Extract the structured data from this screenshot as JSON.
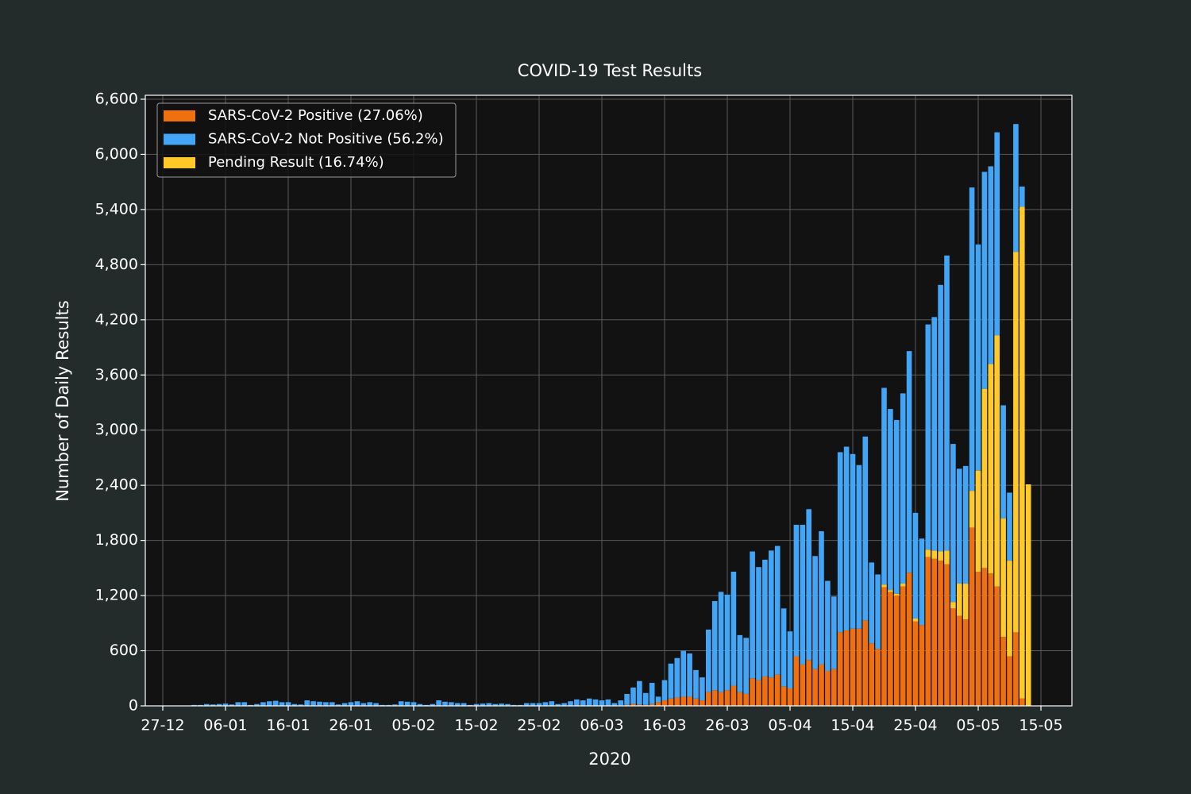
{
  "chart_data": {
    "type": "stacked_bar",
    "title": "COVID-19 Test Results",
    "x_label": "2020",
    "y_label": "Number of Daily Results",
    "categories": [
      "27-12",
      null,
      null,
      null,
      null,
      null,
      null,
      null,
      null,
      null,
      "06-01",
      null,
      null,
      null,
      null,
      null,
      null,
      null,
      null,
      null,
      "16-01",
      null,
      null,
      null,
      null,
      null,
      null,
      null,
      null,
      null,
      "26-01",
      null,
      null,
      null,
      null,
      null,
      null,
      null,
      null,
      null,
      "05-02",
      null,
      null,
      null,
      null,
      null,
      null,
      null,
      null,
      null,
      "15-02",
      null,
      null,
      null,
      null,
      null,
      null,
      null,
      null,
      null,
      "25-02",
      null,
      null,
      null,
      null,
      null,
      null,
      null,
      null,
      null,
      "06-03",
      null,
      null,
      null,
      null,
      null,
      null,
      null,
      null,
      null,
      "16-03",
      null,
      null,
      null,
      null,
      null,
      null,
      null,
      null,
      null,
      "26-03",
      null,
      null,
      null,
      null,
      null,
      null,
      null,
      null,
      null,
      "05-04",
      null,
      null,
      null,
      null,
      null,
      null,
      null,
      null,
      null,
      "15-04",
      null,
      null,
      null,
      null,
      null,
      null,
      null,
      null,
      null,
      "25-04",
      null,
      null,
      null,
      null,
      null,
      null,
      null,
      null,
      null,
      "05-05",
      null,
      null,
      null,
      null,
      null,
      null,
      null,
      null,
      null,
      "15-05"
    ],
    "series": [
      {
        "name": "SARS-CoV-2 Positive (27.06%)",
        "color": "#f07010",
        "values": [
          null,
          null,
          null,
          null,
          null,
          0,
          0,
          0,
          0,
          0,
          0,
          0,
          0,
          0,
          0,
          0,
          0,
          0,
          0,
          0,
          0,
          0,
          0,
          0,
          0,
          0,
          0,
          0,
          0,
          0,
          0,
          0,
          0,
          0,
          0,
          0,
          0,
          0,
          0,
          0,
          0,
          0,
          0,
          0,
          0,
          0,
          0,
          0,
          0,
          0,
          0,
          0,
          0,
          0,
          0,
          0,
          0,
          0,
          0,
          0,
          0,
          0,
          0,
          0,
          0,
          0,
          0,
          0,
          0,
          0,
          0,
          0,
          0,
          5,
          10,
          20,
          15,
          10,
          20,
          40,
          60,
          80,
          90,
          100,
          100,
          80,
          60,
          150,
          170,
          150,
          170,
          220,
          150,
          130,
          300,
          280,
          320,
          310,
          340,
          210,
          190,
          540,
          450,
          500,
          400,
          450,
          380,
          400,
          800,
          820,
          840,
          840,
          930,
          680,
          620,
          1290,
          1240,
          1200,
          1300,
          1450,
          920,
          880,
          1620,
          1600,
          1580,
          1540,
          1060,
          980,
          940,
          1940,
          1460,
          1500,
          1440,
          1300,
          750,
          540,
          800,
          80,
          0,
          null,
          null
        ]
      },
      {
        "name": "SARS-CoV-2 Not Positive (56.2%)",
        "color": "#42a5f5",
        "values": [
          null,
          null,
          null,
          null,
          null,
          10,
          10,
          20,
          15,
          20,
          25,
          15,
          40,
          40,
          10,
          20,
          40,
          50,
          55,
          40,
          40,
          20,
          15,
          60,
          50,
          45,
          40,
          40,
          15,
          30,
          40,
          50,
          30,
          40,
          30,
          10,
          10,
          15,
          50,
          45,
          40,
          20,
          10,
          20,
          60,
          45,
          40,
          30,
          30,
          10,
          20,
          25,
          30,
          20,
          25,
          20,
          10,
          10,
          30,
          30,
          30,
          40,
          50,
          20,
          30,
          50,
          70,
          60,
          80,
          70,
          60,
          70,
          30,
          55,
          120,
          180,
          255,
          130,
          230,
          60,
          220,
          380,
          430,
          500,
          470,
          310,
          250,
          680,
          970,
          1090,
          1040,
          1240,
          620,
          610,
          1380,
          1230,
          1270,
          1380,
          1400,
          850,
          620,
          1430,
          1520,
          1640,
          1230,
          1450,
          980,
          790,
          1960,
          2000,
          1900,
          1780,
          2000,
          880,
          810,
          2140,
          1970,
          1890,
          2070,
          2410,
          1150,
          940,
          2450,
          2540,
          2900,
          3210,
          1720,
          1250,
          1280,
          3300,
          2460,
          2360,
          2150,
          2210,
          1230,
          740,
          1390,
          220,
          0,
          null,
          null
        ]
      },
      {
        "name": "Pending Result (16.74%)",
        "color": "#ffca28",
        "values": [
          null,
          null,
          null,
          null,
          null,
          0,
          0,
          0,
          0,
          0,
          0,
          0,
          0,
          0,
          0,
          0,
          0,
          0,
          0,
          0,
          0,
          0,
          0,
          0,
          0,
          0,
          0,
          0,
          0,
          0,
          0,
          0,
          0,
          0,
          0,
          0,
          0,
          0,
          0,
          0,
          0,
          0,
          0,
          0,
          0,
          0,
          0,
          0,
          0,
          0,
          0,
          0,
          0,
          0,
          0,
          0,
          0,
          0,
          0,
          0,
          0,
          0,
          0,
          0,
          0,
          0,
          0,
          0,
          0,
          0,
          0,
          0,
          0,
          0,
          0,
          0,
          0,
          0,
          0,
          0,
          0,
          0,
          0,
          0,
          0,
          0,
          0,
          0,
          0,
          0,
          0,
          0,
          0,
          0,
          0,
          0,
          0,
          0,
          0,
          0,
          0,
          0,
          0,
          0,
          0,
          0,
          0,
          0,
          0,
          0,
          0,
          0,
          0,
          0,
          0,
          30,
          20,
          20,
          30,
          0,
          30,
          0,
          80,
          90,
          100,
          150,
          70,
          350,
          390,
          400,
          1100,
          1950,
          2280,
          2730,
          1290,
          1040,
          4140,
          5350,
          2410,
          null,
          null
        ]
      }
    ],
    "ylim": [
      0,
      6643
    ],
    "yticks": [
      0,
      600,
      {
        "value": 1200,
        "label": "1,200"
      },
      {
        "value": 1800,
        "label": "1,800"
      },
      {
        "value": 2400,
        "label": "2,400"
      },
      {
        "value": 3000,
        "label": "3,000"
      },
      {
        "value": 3600,
        "label": "3,600"
      },
      {
        "value": 4200,
        "label": "4,200"
      },
      {
        "value": 4800,
        "label": "4,800"
      },
      {
        "value": 5400,
        "label": "5,400"
      },
      {
        "value": 6000,
        "label": "6,000"
      },
      {
        "value": 6600,
        "label": "6,600"
      }
    ],
    "grid": true,
    "legend": "upper left"
  }
}
